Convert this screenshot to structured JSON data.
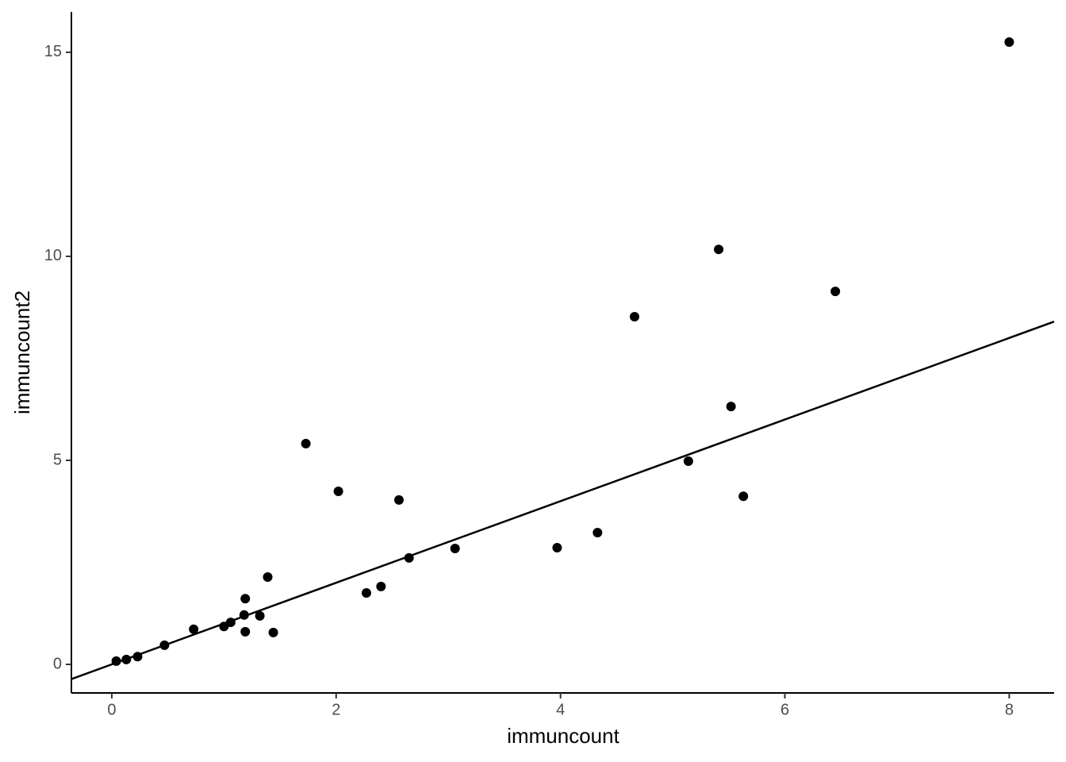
{
  "chart_data": {
    "type": "scatter",
    "x_label": "immuncount",
    "y_label": "immuncount2",
    "x": [
      8.0,
      5.41,
      6.45,
      4.66,
      5.52,
      1.73,
      5.14,
      5.63,
      2.02,
      2.56,
      4.33,
      3.97,
      3.06,
      2.65,
      1.39,
      2.4,
      2.27,
      1.19,
      1.18,
      1.32,
      1.06,
      1.0,
      0.73,
      1.19,
      1.44,
      0.47,
      0.23,
      0.13,
      0.04
    ],
    "values": [
      15.25,
      10.17,
      9.14,
      8.52,
      6.32,
      5.41,
      4.98,
      4.12,
      4.24,
      4.03,
      3.23,
      2.86,
      2.84,
      2.61,
      2.14,
      1.91,
      1.75,
      1.61,
      1.21,
      1.19,
      1.03,
      0.93,
      0.86,
      0.8,
      0.78,
      0.47,
      0.19,
      0.12,
      0.08
    ],
    "color": "#000000",
    "reference_line": {
      "slope": 1,
      "intercept": 0
    },
    "xlim": [
      -0.36,
      8.4
    ],
    "ylim": [
      -0.7,
      15.99
    ],
    "xticks": [
      0,
      2,
      4,
      6,
      8
    ],
    "yticks": [
      0,
      5,
      10,
      15
    ]
  }
}
